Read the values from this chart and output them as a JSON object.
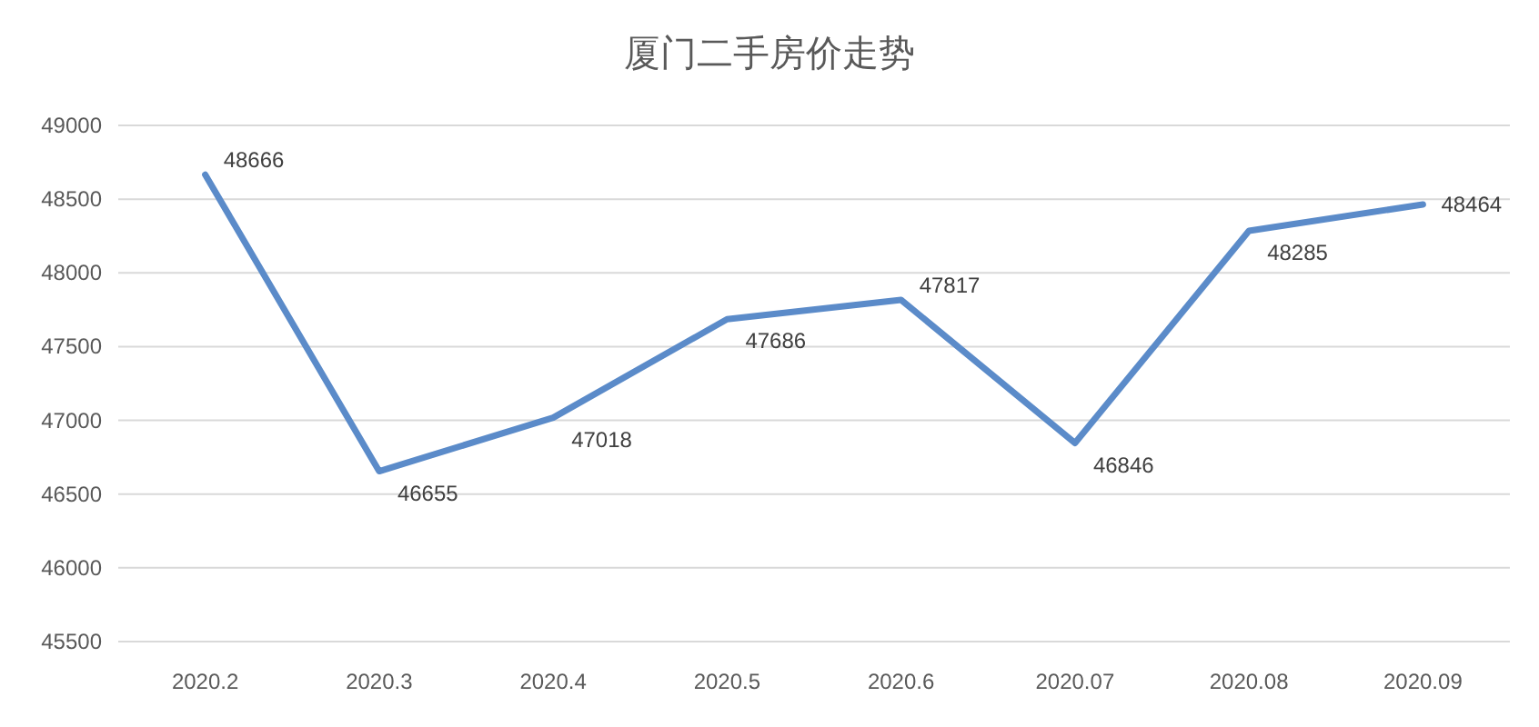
{
  "chart_data": {
    "type": "line",
    "title": "厦门二手房价走势",
    "categories": [
      "2020.2",
      "2020.3",
      "2020.4",
      "2020.5",
      "2020.6",
      "2020.07",
      "2020.08",
      "2020.09"
    ],
    "series": [
      {
        "color": "#5b8bc9",
        "values": [
          48666,
          46655,
          47018,
          47686,
          47817,
          46846,
          48285,
          48464
        ]
      }
    ],
    "ylim": [
      45500,
      49000
    ],
    "yticks": [
      45500,
      46000,
      46500,
      47000,
      47500,
      48000,
      48500,
      49000
    ],
    "grid": "y",
    "data_labels": true,
    "marker": "none",
    "line_style": "solid"
  }
}
